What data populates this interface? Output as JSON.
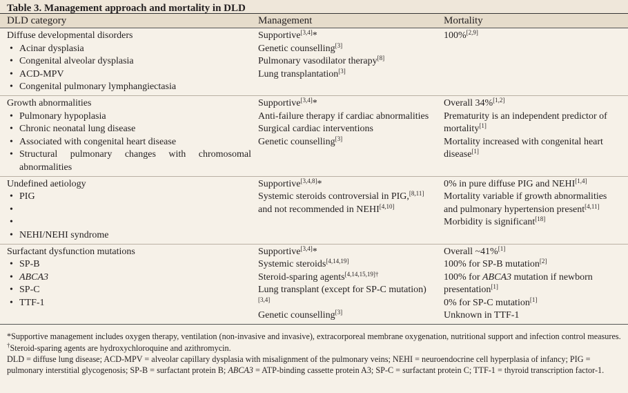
{
  "title": "Table 3. Management approach and mortality in DLD",
  "header": [
    "DLD category",
    "Management",
    "Mortality"
  ],
  "groups": [
    {
      "columns": [
        [
          [
            "Diffuse developmental disorders"
          ],
          [
            "Acinar dysplasia"
          ],
          [
            "Congenital alveolar dysplasia"
          ],
          [
            "ACD-MPV"
          ],
          [
            "Congenital pulmonary lymphangiectasia"
          ]
        ],
        [
          [
            "Supportive",
            {
              "sup": "[3,4]"
            },
            "*"
          ],
          [
            "Genetic counselling",
            {
              "sup": "[3]"
            }
          ],
          [
            "Pulmonary vasodilator therapy",
            {
              "sup": "[8]"
            }
          ],
          [
            "Lung transplantation",
            {
              "sup": "[3]"
            }
          ]
        ],
        [
          [
            "100%",
            {
              "sup": "[2,9]"
            }
          ]
        ]
      ]
    },
    {
      "columns": [
        [
          [
            "Growth abnormalities"
          ],
          [
            "Pulmonary hypoplasia"
          ],
          [
            "Chronic neonatal lung disease"
          ],
          [
            "Associated with congenital heart disease"
          ],
          [
            "Structural pulmonary changes with chromosomal abnormalities"
          ]
        ],
        [
          [
            "Supportive",
            {
              "sup": "[3,4]"
            },
            "*"
          ],
          [
            "Anti-failure therapy if cardiac abnormalities"
          ],
          [
            "Surgical cardiac interventions"
          ],
          [
            "Genetic counselling",
            {
              "sup": "[3]"
            }
          ]
        ],
        [
          [
            "Overall 34%",
            {
              "sup": "[1,2]"
            }
          ],
          [
            "Prematurity is an independent predictor of mortality",
            {
              "sup": "[1]"
            }
          ],
          [
            "Mortality increased with congenital heart disease",
            {
              "sup": "[1]"
            }
          ]
        ]
      ]
    },
    {
      "columns": [
        [
          [
            "Undefined aetiology"
          ],
          [
            "PIG"
          ],
          null,
          null,
          [
            "NEHI/NEHI syndrome"
          ]
        ],
        [
          [
            "Supportive",
            {
              "sup": "[3,4,8]"
            },
            "*"
          ],
          [
            "Systemic steroids controversial in PIG,",
            {
              "sup": "[8,11]"
            },
            " and not recommended in NEHI",
            {
              "sup": "[4,10]"
            }
          ]
        ],
        [
          [
            "0% in pure diffuse PIG and NEHI",
            {
              "sup": "[1,4]"
            }
          ],
          [
            "Mortality variable if growth abnormalities and pulmonary hypertension present",
            {
              "sup": "[4,11]"
            }
          ],
          [
            "Morbidity is significant",
            {
              "sup": "[18]"
            }
          ]
        ]
      ]
    },
    {
      "columns": [
        [
          [
            "Surfactant dysfunction mutations"
          ],
          [
            "SP-B"
          ],
          [
            {
              "i": "ABCA3"
            }
          ],
          [
            "SP-C"
          ],
          [
            "TTF-1"
          ]
        ],
        [
          [
            "Supportive",
            {
              "sup": "[3,4]"
            },
            "*"
          ],
          [
            "Systemic steroids",
            {
              "sup": "[4,14,19]"
            }
          ],
          [
            "Steroid-sparing agents",
            {
              "sup": "[4,14,15,19]†"
            }
          ],
          [
            "Lung transplant (except for SP-C mutation)",
            {
              "sup": "[3,4]"
            }
          ],
          [
            "Genetic counselling",
            {
              "sup": "[3]"
            }
          ]
        ],
        [
          [
            "Overall ~41%",
            {
              "sup": "[1]"
            }
          ],
          [
            "100% for SP-B mutation",
            {
              "sup": "[2]"
            }
          ],
          [
            "100% for ",
            {
              "i": "ABCA3"
            },
            " mutation if newborn presentation",
            {
              "sup": "[1]"
            }
          ],
          [
            "0% for SP-C mutation",
            {
              "sup": "[1]"
            }
          ],
          [
            "Unknown in TTF-1"
          ]
        ]
      ]
    }
  ],
  "footnotes": [
    [
      "*Supportive management includes oxygen therapy, ventilation (non-invasive and invasive), extracorporeal membrane oxygenation, nutritional support and infection control measures."
    ],
    [
      {
        "sup": "†"
      },
      "Steroid-sparing agents are hydroxychloroquine and azithromycin."
    ],
    [
      "DLD = diffuse lung disease; ACD-MPV = alveolar capillary dysplasia with misalignment of the pulmonary veins; NEHI = neuroendocrine cell hyperplasia of infancy; PIG = pulmonary interstitial glycogenosis; SP-B = surfactant protein B; ",
      {
        "i": "ABCA3"
      },
      " = ATP-binding cassette protein A3; SP-C = surfactant protein C; TTF-1 = thyroid transcription factor-1."
    ]
  ]
}
